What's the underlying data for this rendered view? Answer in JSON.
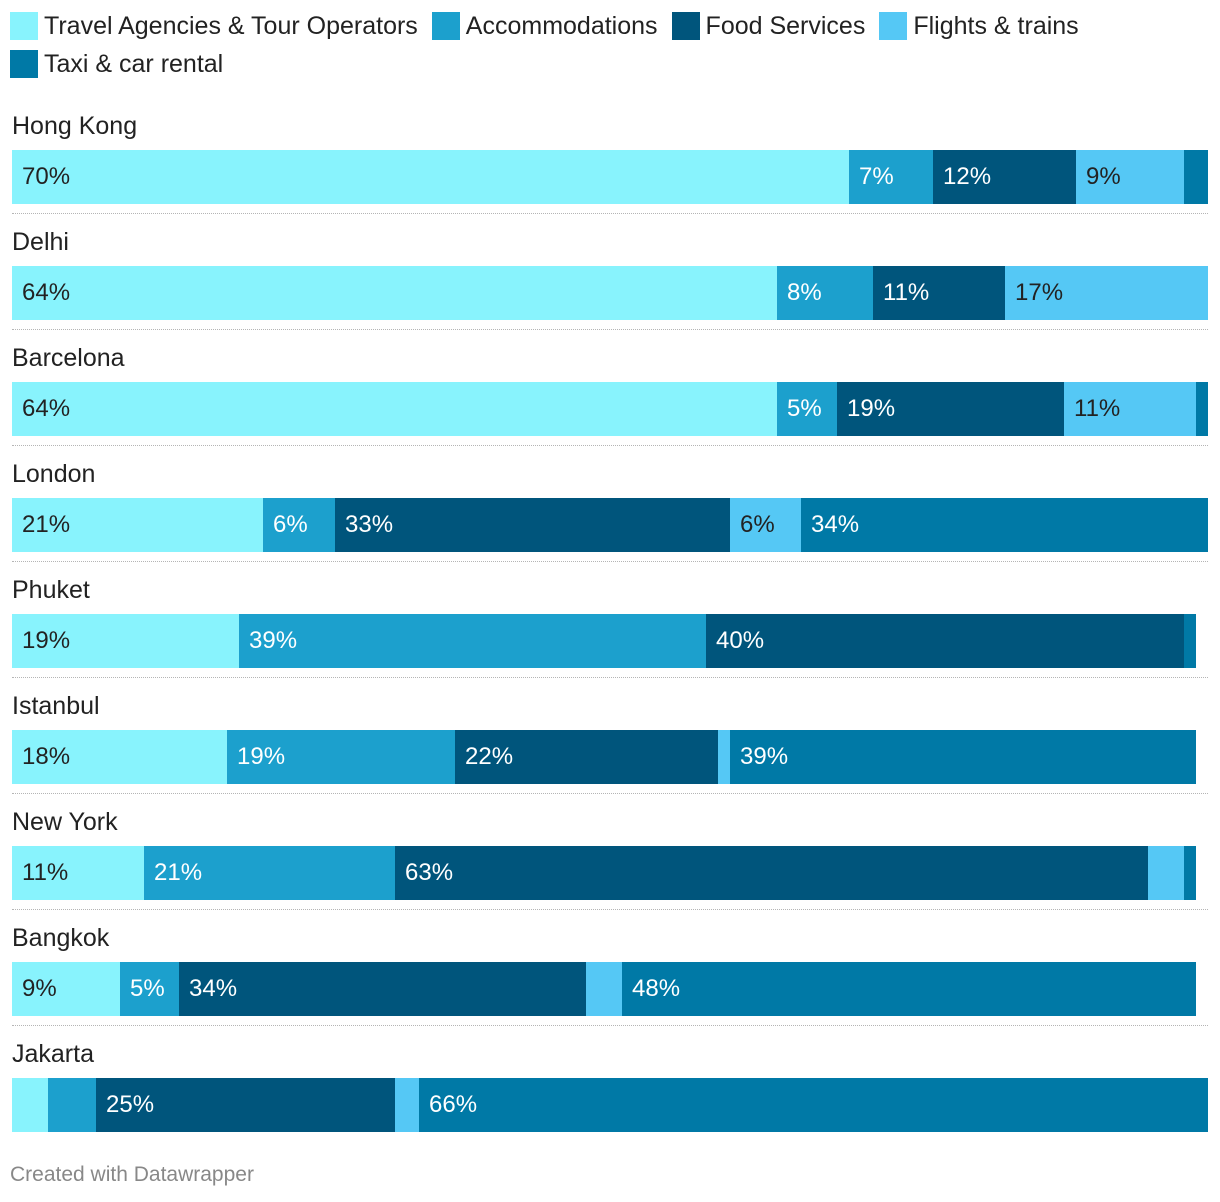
{
  "chart_data": {
    "type": "bar",
    "orientation": "horizontal",
    "stacked": true,
    "xlim": [
      0,
      100
    ],
    "legend_position": "top",
    "categories": [
      "Hong Kong",
      "Delhi",
      "Barcelona",
      "London",
      "Phuket",
      "Istanbul",
      "New York",
      "Bangkok",
      "Jakarta"
    ],
    "series": [
      {
        "name": "Travel Agencies & Tour Operators",
        "color": "#88f3fd",
        "text_color": "#222222",
        "values": [
          70,
          64,
          64,
          21,
          19,
          18,
          11,
          9,
          3
        ],
        "labels": [
          "70%",
          "64%",
          "64%",
          "21%",
          "19%",
          "18%",
          "11%",
          "9%",
          ""
        ]
      },
      {
        "name": "Accommodations",
        "color": "#1ca0cd",
        "text_color": "#ffffff",
        "values": [
          7,
          8,
          5,
          6,
          39,
          19,
          21,
          5,
          4
        ],
        "labels": [
          "7%",
          "8%",
          "5%",
          "6%",
          "39%",
          "19%",
          "21%",
          "5%",
          ""
        ]
      },
      {
        "name": "Food Services",
        "color": "#00557c",
        "text_color": "#ffffff",
        "values": [
          12,
          11,
          19,
          33,
          40,
          22,
          63,
          34,
          25
        ],
        "labels": [
          "12%",
          "11%",
          "19%",
          "33%",
          "40%",
          "22%",
          "63%",
          "34%",
          "25%"
        ]
      },
      {
        "name": "Flights & trains",
        "color": "#55c8f5",
        "text_color": "#222222",
        "values": [
          9,
          17,
          11,
          6,
          0,
          1,
          3,
          3,
          2
        ],
        "labels": [
          "9%",
          "17%",
          "11%",
          "6%",
          "",
          "",
          "",
          "",
          ""
        ]
      },
      {
        "name": "Taxi & car rental",
        "color": "#0079a6",
        "text_color": "#ffffff",
        "values": [
          2,
          0,
          2,
          34,
          1,
          39,
          1,
          48,
          66
        ],
        "labels": [
          "",
          "",
          "",
          "34%",
          "",
          "39%",
          "",
          "48%",
          "66%"
        ]
      }
    ]
  },
  "footer": {
    "credit": "Created with Datawrapper"
  }
}
